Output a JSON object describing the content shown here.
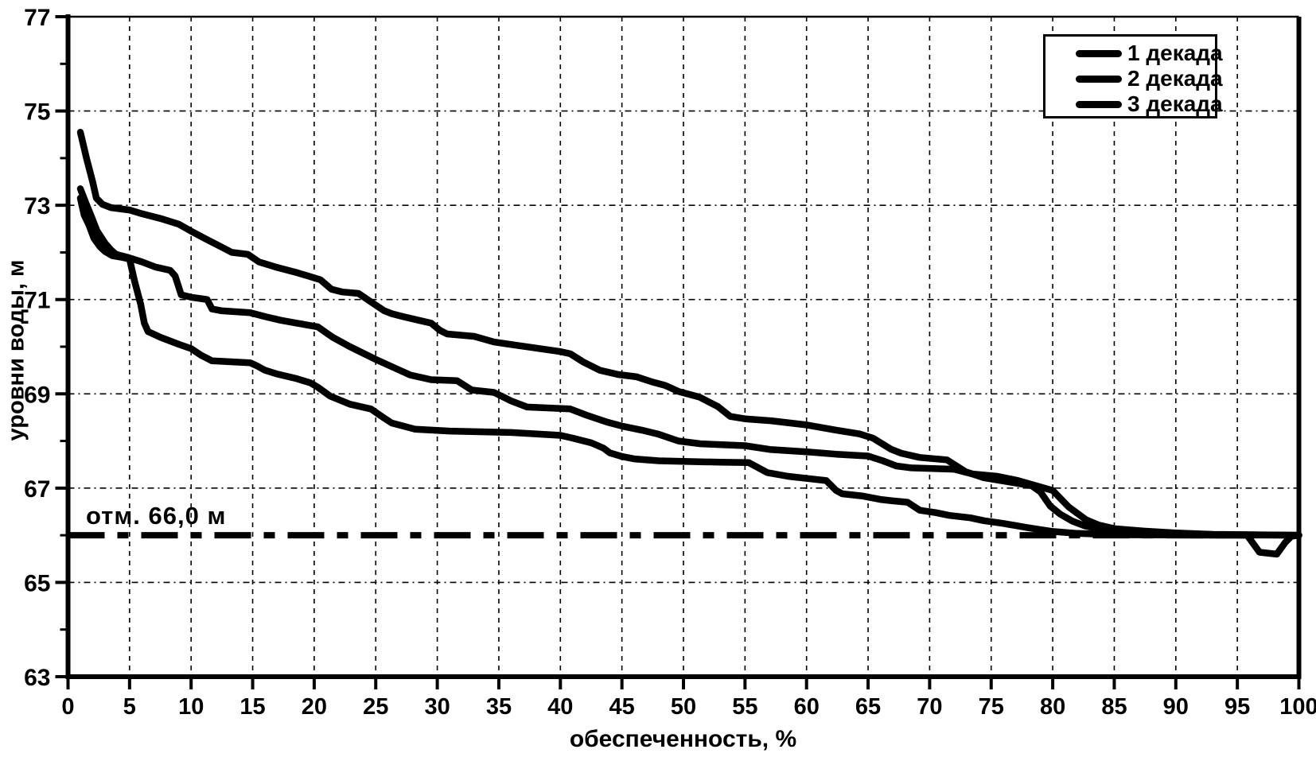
{
  "chart_data": {
    "type": "line",
    "title": "",
    "xlabel": "обеспеченность, %",
    "ylabel": "уровни воды, м",
    "xlim": [
      0,
      100
    ],
    "ylim": [
      63,
      77
    ],
    "xticks": [
      0,
      5,
      10,
      15,
      20,
      25,
      30,
      35,
      40,
      45,
      50,
      55,
      60,
      65,
      70,
      75,
      80,
      85,
      90,
      95,
      100
    ],
    "yticks": [
      63,
      65,
      67,
      69,
      71,
      73,
      75,
      77
    ],
    "ytick_minor_step": 1,
    "grid": true,
    "legend_position": "top-right",
    "line_color": "#000000",
    "background": "#ffffff",
    "reference_line": {
      "value": 66.0,
      "label": "отм. 66,0 м",
      "style": "dash-dot"
    },
    "series": [
      {
        "name": "1 декада",
        "color": "#000000",
        "points": [
          [
            1,
            74.55
          ],
          [
            1.5,
            74.0
          ],
          [
            2,
            73.5
          ],
          [
            2.3,
            73.15
          ],
          [
            2.8,
            73.02
          ],
          [
            3.5,
            72.95
          ],
          [
            5,
            72.9
          ],
          [
            6,
            72.82
          ],
          [
            7.5,
            72.72
          ],
          [
            9,
            72.6
          ],
          [
            10,
            72.45
          ],
          [
            11.3,
            72.27
          ],
          [
            12.2,
            72.15
          ],
          [
            13.3,
            72.0
          ],
          [
            14.6,
            71.96
          ],
          [
            15.5,
            71.8
          ],
          [
            17,
            71.68
          ],
          [
            18.6,
            71.57
          ],
          [
            19.5,
            71.5
          ],
          [
            20.5,
            71.42
          ],
          [
            21.4,
            71.22
          ],
          [
            22.3,
            71.16
          ],
          [
            23.6,
            71.13
          ],
          [
            25,
            70.88
          ],
          [
            25.7,
            70.76
          ],
          [
            26.3,
            70.7
          ],
          [
            27.2,
            70.64
          ],
          [
            28.5,
            70.56
          ],
          [
            29.5,
            70.5
          ],
          [
            30.2,
            70.35
          ],
          [
            30.8,
            70.27
          ],
          [
            33,
            70.22
          ],
          [
            34.6,
            70.1
          ],
          [
            36.7,
            70.02
          ],
          [
            39.9,
            69.9
          ],
          [
            40.8,
            69.85
          ],
          [
            41.9,
            69.67
          ],
          [
            43.2,
            69.5
          ],
          [
            44.7,
            69.41
          ],
          [
            46.2,
            69.36
          ],
          [
            47.5,
            69.25
          ],
          [
            48.5,
            69.18
          ],
          [
            49.6,
            69.05
          ],
          [
            51.3,
            68.93
          ],
          [
            52.8,
            68.73
          ],
          [
            53.8,
            68.52
          ],
          [
            55,
            68.47
          ],
          [
            57.1,
            68.43
          ],
          [
            60,
            68.34
          ],
          [
            62.4,
            68.23
          ],
          [
            64.3,
            68.15
          ],
          [
            65.4,
            68.06
          ],
          [
            66.9,
            67.82
          ],
          [
            67.7,
            67.74
          ],
          [
            69.2,
            67.65
          ],
          [
            71.4,
            67.6
          ],
          [
            72.9,
            67.35
          ],
          [
            74.4,
            67.22
          ],
          [
            76.5,
            67.13
          ],
          [
            78.3,
            67.05
          ],
          [
            79,
            66.92
          ],
          [
            79.8,
            66.62
          ],
          [
            80.6,
            66.45
          ],
          [
            81.6,
            66.3
          ],
          [
            82.6,
            66.2
          ],
          [
            84,
            66.12
          ],
          [
            86,
            66.07
          ],
          [
            88,
            66.04
          ],
          [
            91,
            66.02
          ],
          [
            100,
            66.0
          ]
        ]
      },
      {
        "name": "2 декада",
        "color": "#000000",
        "points": [
          [
            1,
            73.35
          ],
          [
            1.45,
            73.05
          ],
          [
            1.9,
            72.76
          ],
          [
            2.35,
            72.46
          ],
          [
            3,
            72.2
          ],
          [
            3.5,
            72.05
          ],
          [
            3.9,
            71.96
          ],
          [
            4.9,
            71.89
          ],
          [
            6,
            71.8
          ],
          [
            7.1,
            71.69
          ],
          [
            8.3,
            71.62
          ],
          [
            8.7,
            71.5
          ],
          [
            9.2,
            71.1
          ],
          [
            10,
            71.05
          ],
          [
            11.3,
            71.0
          ],
          [
            11.7,
            70.8
          ],
          [
            12.5,
            70.76
          ],
          [
            14.8,
            70.72
          ],
          [
            16,
            70.64
          ],
          [
            17.3,
            70.56
          ],
          [
            18.6,
            70.5
          ],
          [
            20.3,
            70.42
          ],
          [
            21.5,
            70.2
          ],
          [
            22.9,
            70.0
          ],
          [
            25,
            69.73
          ],
          [
            27.8,
            69.4
          ],
          [
            29.5,
            69.3
          ],
          [
            31.6,
            69.28
          ],
          [
            32.8,
            69.08
          ],
          [
            34.6,
            69.03
          ],
          [
            36,
            68.85
          ],
          [
            37.3,
            68.72
          ],
          [
            40.8,
            68.68
          ],
          [
            42.1,
            68.55
          ],
          [
            43.8,
            68.4
          ],
          [
            45.1,
            68.31
          ],
          [
            46.6,
            68.23
          ],
          [
            47.9,
            68.15
          ],
          [
            49.6,
            68.0
          ],
          [
            51.4,
            67.94
          ],
          [
            55,
            67.9
          ],
          [
            57,
            67.82
          ],
          [
            60,
            67.77
          ],
          [
            62.4,
            67.72
          ],
          [
            65,
            67.68
          ],
          [
            66.2,
            67.58
          ],
          [
            67.3,
            67.47
          ],
          [
            68.5,
            67.43
          ],
          [
            72,
            67.4
          ],
          [
            73.5,
            67.3
          ],
          [
            75.5,
            67.25
          ],
          [
            77.2,
            67.16
          ],
          [
            80,
            66.95
          ],
          [
            81.3,
            66.6
          ],
          [
            82.7,
            66.33
          ],
          [
            83.7,
            66.22
          ],
          [
            85,
            66.14
          ],
          [
            87.4,
            66.09
          ],
          [
            90,
            66.05
          ],
          [
            93,
            66.02
          ],
          [
            100,
            66.0
          ]
        ]
      },
      {
        "name": "3 декада",
        "color": "#000000",
        "points": [
          [
            1,
            73.15
          ],
          [
            1.3,
            72.8
          ],
          [
            1.7,
            72.58
          ],
          [
            2.1,
            72.3
          ],
          [
            2.6,
            72.12
          ],
          [
            3,
            72.02
          ],
          [
            3.6,
            71.93
          ],
          [
            4.3,
            71.9
          ],
          [
            5,
            71.86
          ],
          [
            5.4,
            71.4
          ],
          [
            5.9,
            70.9
          ],
          [
            6.2,
            70.5
          ],
          [
            6.5,
            70.32
          ],
          [
            7.5,
            70.2
          ],
          [
            9,
            70.05
          ],
          [
            10,
            69.96
          ],
          [
            10.8,
            69.82
          ],
          [
            11.7,
            69.7
          ],
          [
            14.8,
            69.66
          ],
          [
            15.3,
            69.6
          ],
          [
            16,
            69.5
          ],
          [
            17,
            69.42
          ],
          [
            18.6,
            69.32
          ],
          [
            19.7,
            69.23
          ],
          [
            20.3,
            69.14
          ],
          [
            21.3,
            68.95
          ],
          [
            22.9,
            68.78
          ],
          [
            24.6,
            68.68
          ],
          [
            25.6,
            68.5
          ],
          [
            26.3,
            68.38
          ],
          [
            28.2,
            68.25
          ],
          [
            31,
            68.21
          ],
          [
            36,
            68.18
          ],
          [
            40,
            68.12
          ],
          [
            41,
            68.06
          ],
          [
            42.5,
            67.96
          ],
          [
            43.5,
            67.85
          ],
          [
            44,
            67.75
          ],
          [
            45,
            67.67
          ],
          [
            46,
            67.62
          ],
          [
            48,
            67.58
          ],
          [
            53,
            67.55
          ],
          [
            55.3,
            67.54
          ],
          [
            56.8,
            67.33
          ],
          [
            58.5,
            67.25
          ],
          [
            61.6,
            67.16
          ],
          [
            62.4,
            66.95
          ],
          [
            62.9,
            66.88
          ],
          [
            64.6,
            66.83
          ],
          [
            66,
            66.76
          ],
          [
            67,
            66.73
          ],
          [
            68.2,
            66.7
          ],
          [
            69.2,
            66.53
          ],
          [
            70.5,
            66.48
          ],
          [
            71.6,
            66.42
          ],
          [
            73.3,
            66.37
          ],
          [
            74.4,
            66.31
          ],
          [
            76,
            66.25
          ],
          [
            78,
            66.16
          ],
          [
            80,
            66.08
          ],
          [
            82,
            66.04
          ],
          [
            85,
            66.01
          ],
          [
            95.8,
            66.0
          ],
          [
            96.8,
            65.64
          ],
          [
            98.2,
            65.6
          ],
          [
            98.9,
            65.85
          ],
          [
            99.4,
            65.98
          ],
          [
            100,
            66.0
          ]
        ]
      }
    ]
  }
}
